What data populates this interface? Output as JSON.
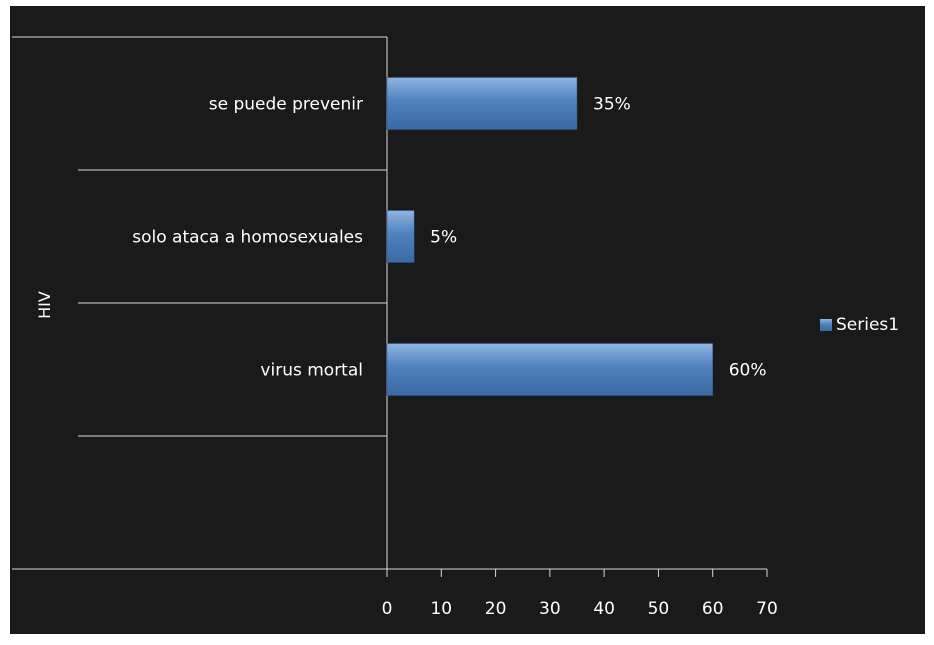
{
  "chart_data": {
    "type": "bar",
    "orientation": "horizontal",
    "categories": [
      "se puede prevenir",
      "solo ataca a homosexuales",
      "virus mortal"
    ],
    "series": [
      {
        "name": "Series1",
        "values": [
          35,
          5,
          60
        ],
        "labels": [
          "35%",
          "5%",
          "60%"
        ],
        "color": "#4f81bd"
      }
    ],
    "ylabel": "HIV",
    "xlim": [
      0,
      70
    ],
    "x_ticks": [
      "0",
      "10",
      "20",
      "30",
      "40",
      "50",
      "60",
      "70"
    ],
    "grid": false,
    "legend_position": "right",
    "background": "#1a1a1a"
  }
}
